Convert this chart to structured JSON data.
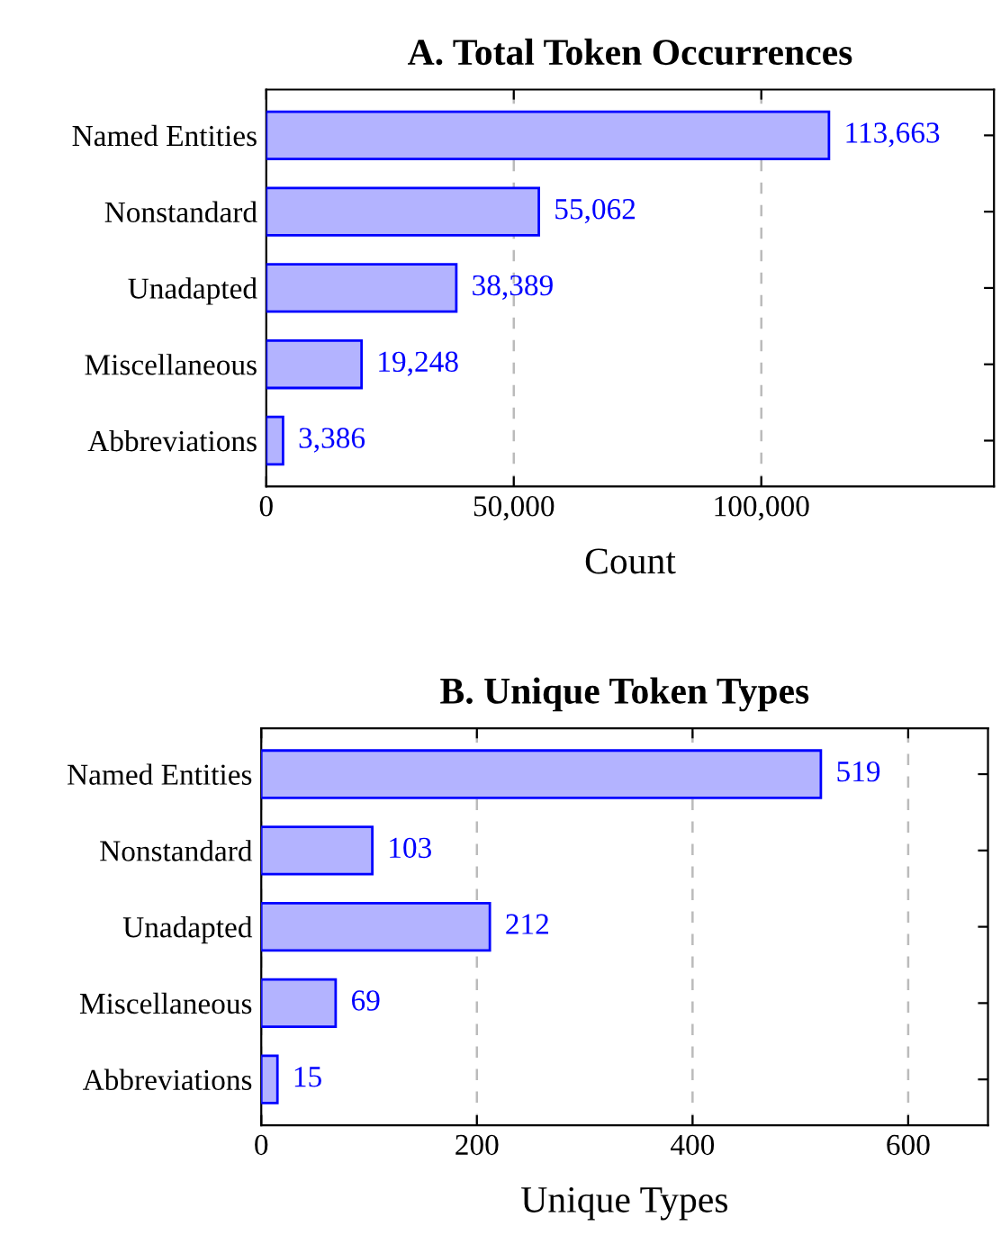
{
  "chart_data": [
    {
      "type": "bar",
      "orientation": "horizontal",
      "title": "A. Total Token Occurrences",
      "xlabel": "Count",
      "categories": [
        "Named Entities",
        "Nonstandard",
        "Unadapted",
        "Miscellaneous",
        "Abbreviations"
      ],
      "values": [
        113663,
        55062,
        38389,
        19248,
        3386
      ],
      "color": "#b3b3ff",
      "value_labels": [
        "113,663",
        "55,062",
        "38,389",
        "19,248",
        "3,386"
      ],
      "xlim": [
        0,
        147000
      ],
      "xticks": [
        {
          "value": 0,
          "label": "0"
        },
        {
          "value": 50000,
          "label": "50,000"
        },
        {
          "value": 100000,
          "label": "100,000"
        }
      ],
      "grid": "x"
    },
    {
      "type": "bar",
      "orientation": "horizontal",
      "title": "B. Unique Token Types",
      "xlabel": "Unique Types",
      "categories": [
        "Named Entities",
        "Nonstandard",
        "Unadapted",
        "Miscellaneous",
        "Abbreviations"
      ],
      "values": [
        519,
        103,
        212,
        69,
        15
      ],
      "color": "#b3b3ff",
      "value_labels": [
        "519",
        "103",
        "212",
        "69",
        "15"
      ],
      "xlim": [
        0,
        674
      ],
      "xticks": [
        0,
        200,
        400,
        600
      ],
      "grid": "x"
    }
  ]
}
